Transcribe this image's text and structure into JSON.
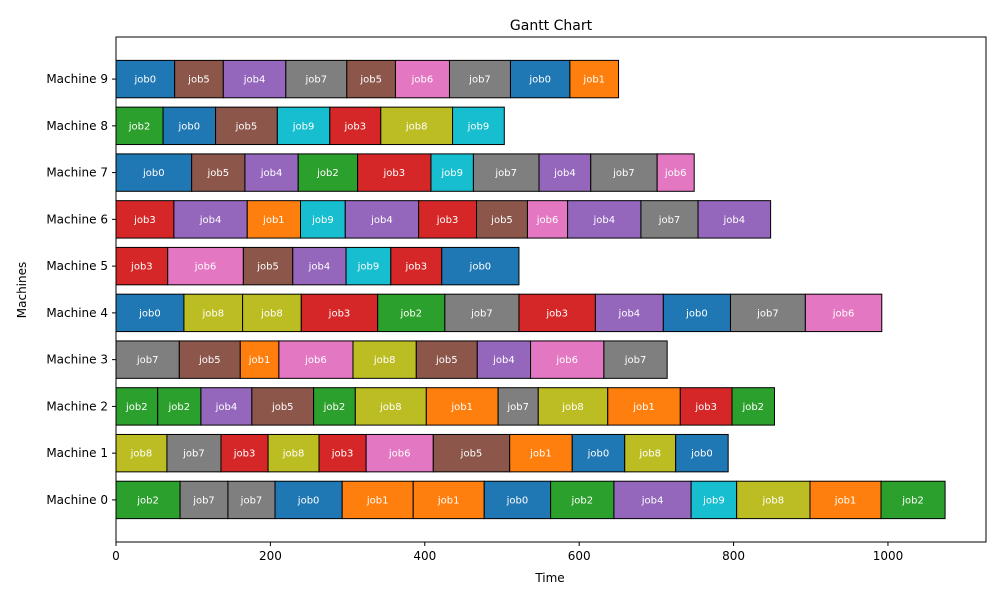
{
  "chart_data": {
    "type": "gantt",
    "title": "Gantt Chart",
    "xlabel": "Time",
    "ylabel": "Machines",
    "xlim": [
      0,
      1127
    ],
    "xticks": [
      0,
      200,
      400,
      600,
      800,
      1000
    ],
    "grid": false,
    "machines": [
      "Machine 0",
      "Machine 1",
      "Machine 2",
      "Machine 3",
      "Machine 4",
      "Machine 5",
      "Machine 6",
      "Machine 7",
      "Machine 8",
      "Machine 9"
    ],
    "job_colors": {
      "job0": "#1f77b4",
      "job1": "#ff7f0e",
      "job2": "#2ca02c",
      "job3": "#d62728",
      "job4": "#9467bd",
      "job5": "#8c564b",
      "job6": "#e377c2",
      "job7": "#7f7f7f",
      "job8": "#bcbd22",
      "job9": "#17becf"
    },
    "tasks": [
      {
        "machine": 0,
        "job": "job2",
        "start": 0,
        "end": 83
      },
      {
        "machine": 0,
        "job": "job7",
        "start": 83,
        "end": 145
      },
      {
        "machine": 0,
        "job": "job7",
        "start": 145,
        "end": 206
      },
      {
        "machine": 0,
        "job": "job0",
        "start": 206,
        "end": 293
      },
      {
        "machine": 0,
        "job": "job1",
        "start": 293,
        "end": 385
      },
      {
        "machine": 0,
        "job": "job1",
        "start": 385,
        "end": 477
      },
      {
        "machine": 0,
        "job": "job0",
        "start": 477,
        "end": 563
      },
      {
        "machine": 0,
        "job": "job2",
        "start": 563,
        "end": 645
      },
      {
        "machine": 0,
        "job": "job4",
        "start": 645,
        "end": 745
      },
      {
        "machine": 0,
        "job": "job9",
        "start": 745,
        "end": 804
      },
      {
        "machine": 0,
        "job": "job8",
        "start": 804,
        "end": 899
      },
      {
        "machine": 0,
        "job": "job1",
        "start": 899,
        "end": 991
      },
      {
        "machine": 0,
        "job": "job2",
        "start": 991,
        "end": 1074
      },
      {
        "machine": 1,
        "job": "job8",
        "start": 0,
        "end": 66
      },
      {
        "machine": 1,
        "job": "job7",
        "start": 66,
        "end": 136
      },
      {
        "machine": 1,
        "job": "job3",
        "start": 136,
        "end": 197
      },
      {
        "machine": 1,
        "job": "job8",
        "start": 197,
        "end": 263
      },
      {
        "machine": 1,
        "job": "job3",
        "start": 263,
        "end": 324
      },
      {
        "machine": 1,
        "job": "job6",
        "start": 324,
        "end": 411
      },
      {
        "machine": 1,
        "job": "job5",
        "start": 411,
        "end": 510
      },
      {
        "machine": 1,
        "job": "job1",
        "start": 510,
        "end": 591
      },
      {
        "machine": 1,
        "job": "job0",
        "start": 591,
        "end": 659
      },
      {
        "machine": 1,
        "job": "job8",
        "start": 659,
        "end": 725
      },
      {
        "machine": 1,
        "job": "job0",
        "start": 725,
        "end": 793
      },
      {
        "machine": 2,
        "job": "job2",
        "start": 0,
        "end": 54
      },
      {
        "machine": 2,
        "job": "job2",
        "start": 54,
        "end": 110
      },
      {
        "machine": 2,
        "job": "job4",
        "start": 110,
        "end": 176
      },
      {
        "machine": 2,
        "job": "job5",
        "start": 176,
        "end": 256
      },
      {
        "machine": 2,
        "job": "job2",
        "start": 256,
        "end": 310
      },
      {
        "machine": 2,
        "job": "job8",
        "start": 310,
        "end": 402
      },
      {
        "machine": 2,
        "job": "job1",
        "start": 402,
        "end": 495
      },
      {
        "machine": 2,
        "job": "job7",
        "start": 495,
        "end": 547
      },
      {
        "machine": 2,
        "job": "job8",
        "start": 547,
        "end": 637
      },
      {
        "machine": 2,
        "job": "job1",
        "start": 637,
        "end": 731
      },
      {
        "machine": 2,
        "job": "job3",
        "start": 731,
        "end": 798
      },
      {
        "machine": 2,
        "job": "job2",
        "start": 798,
        "end": 853
      },
      {
        "machine": 3,
        "job": "job7",
        "start": 0,
        "end": 82
      },
      {
        "machine": 3,
        "job": "job5",
        "start": 82,
        "end": 161
      },
      {
        "machine": 3,
        "job": "job1",
        "start": 161,
        "end": 211
      },
      {
        "machine": 3,
        "job": "job6",
        "start": 211,
        "end": 307
      },
      {
        "machine": 3,
        "job": "job8",
        "start": 307,
        "end": 389
      },
      {
        "machine": 3,
        "job": "job5",
        "start": 389,
        "end": 468
      },
      {
        "machine": 3,
        "job": "job4",
        "start": 468,
        "end": 537
      },
      {
        "machine": 3,
        "job": "job6",
        "start": 537,
        "end": 632
      },
      {
        "machine": 3,
        "job": "job7",
        "start": 632,
        "end": 714
      },
      {
        "machine": 4,
        "job": "job0",
        "start": 0,
        "end": 88
      },
      {
        "machine": 4,
        "job": "job8",
        "start": 88,
        "end": 164
      },
      {
        "machine": 4,
        "job": "job8",
        "start": 164,
        "end": 240
      },
      {
        "machine": 4,
        "job": "job3",
        "start": 240,
        "end": 339
      },
      {
        "machine": 4,
        "job": "job2",
        "start": 339,
        "end": 426
      },
      {
        "machine": 4,
        "job": "job7",
        "start": 426,
        "end": 522
      },
      {
        "machine": 4,
        "job": "job3",
        "start": 522,
        "end": 621
      },
      {
        "machine": 4,
        "job": "job4",
        "start": 621,
        "end": 709
      },
      {
        "machine": 4,
        "job": "job0",
        "start": 709,
        "end": 796
      },
      {
        "machine": 4,
        "job": "job7",
        "start": 796,
        "end": 893
      },
      {
        "machine": 4,
        "job": "job6",
        "start": 893,
        "end": 992
      },
      {
        "machine": 5,
        "job": "job3",
        "start": 0,
        "end": 67
      },
      {
        "machine": 5,
        "job": "job6",
        "start": 67,
        "end": 165
      },
      {
        "machine": 5,
        "job": "job5",
        "start": 165,
        "end": 229
      },
      {
        "machine": 5,
        "job": "job4",
        "start": 229,
        "end": 298
      },
      {
        "machine": 5,
        "job": "job9",
        "start": 298,
        "end": 356
      },
      {
        "machine": 5,
        "job": "job3",
        "start": 356,
        "end": 422
      },
      {
        "machine": 5,
        "job": "job0",
        "start": 422,
        "end": 522
      },
      {
        "machine": 6,
        "job": "job3",
        "start": 0,
        "end": 75
      },
      {
        "machine": 6,
        "job": "job4",
        "start": 75,
        "end": 170
      },
      {
        "machine": 6,
        "job": "job1",
        "start": 170,
        "end": 239
      },
      {
        "machine": 6,
        "job": "job9",
        "start": 239,
        "end": 297
      },
      {
        "machine": 6,
        "job": "job4",
        "start": 297,
        "end": 392
      },
      {
        "machine": 6,
        "job": "job3",
        "start": 392,
        "end": 467
      },
      {
        "machine": 6,
        "job": "job5",
        "start": 467,
        "end": 533
      },
      {
        "machine": 6,
        "job": "job6",
        "start": 533,
        "end": 585
      },
      {
        "machine": 6,
        "job": "job4",
        "start": 585,
        "end": 680
      },
      {
        "machine": 6,
        "job": "job7",
        "start": 680,
        "end": 754
      },
      {
        "machine": 6,
        "job": "job4",
        "start": 754,
        "end": 848
      },
      {
        "machine": 7,
        "job": "job0",
        "start": 0,
        "end": 98
      },
      {
        "machine": 7,
        "job": "job5",
        "start": 98,
        "end": 167
      },
      {
        "machine": 7,
        "job": "job4",
        "start": 167,
        "end": 236
      },
      {
        "machine": 7,
        "job": "job2",
        "start": 236,
        "end": 313
      },
      {
        "machine": 7,
        "job": "job3",
        "start": 313,
        "end": 408
      },
      {
        "machine": 7,
        "job": "job9",
        "start": 408,
        "end": 463
      },
      {
        "machine": 7,
        "job": "job7",
        "start": 463,
        "end": 548
      },
      {
        "machine": 7,
        "job": "job4",
        "start": 548,
        "end": 615
      },
      {
        "machine": 7,
        "job": "job7",
        "start": 615,
        "end": 701
      },
      {
        "machine": 7,
        "job": "job6",
        "start": 701,
        "end": 749
      },
      {
        "machine": 8,
        "job": "job2",
        "start": 0,
        "end": 61
      },
      {
        "machine": 8,
        "job": "job0",
        "start": 61,
        "end": 129
      },
      {
        "machine": 8,
        "job": "job5",
        "start": 129,
        "end": 209
      },
      {
        "machine": 8,
        "job": "job9",
        "start": 209,
        "end": 277
      },
      {
        "machine": 8,
        "job": "job3",
        "start": 277,
        "end": 343
      },
      {
        "machine": 8,
        "job": "job8",
        "start": 343,
        "end": 436
      },
      {
        "machine": 8,
        "job": "job9",
        "start": 436,
        "end": 503
      },
      {
        "machine": 9,
        "job": "job0",
        "start": 0,
        "end": 76
      },
      {
        "machine": 9,
        "job": "job5",
        "start": 76,
        "end": 139
      },
      {
        "machine": 9,
        "job": "job4",
        "start": 139,
        "end": 220
      },
      {
        "machine": 9,
        "job": "job7",
        "start": 220,
        "end": 299
      },
      {
        "machine": 9,
        "job": "job5",
        "start": 299,
        "end": 362
      },
      {
        "machine": 9,
        "job": "job6",
        "start": 362,
        "end": 432
      },
      {
        "machine": 9,
        "job": "job7",
        "start": 432,
        "end": 511
      },
      {
        "machine": 9,
        "job": "job0",
        "start": 511,
        "end": 588
      },
      {
        "machine": 9,
        "job": "job1",
        "start": 588,
        "end": 651
      }
    ]
  }
}
